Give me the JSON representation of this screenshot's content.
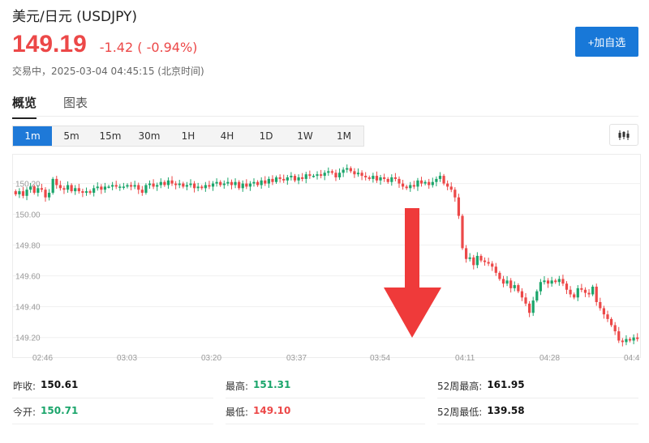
{
  "header": {
    "title": "美元/日元 (USDJPY)",
    "price": "149.19",
    "change": "-1.42 ( -0.94%)",
    "status": "交易中，2025-03-04 04:45:15 (北京时间)",
    "add_button": "+加自选"
  },
  "tabs": [
    {
      "label": "概览",
      "active": true
    },
    {
      "label": "图表",
      "active": false
    }
  ],
  "periods": [
    {
      "label": "1m",
      "active": true
    },
    {
      "label": "5m"
    },
    {
      "label": "15m"
    },
    {
      "label": "30m"
    },
    {
      "label": "1H"
    },
    {
      "label": "4H"
    },
    {
      "label": "1D"
    },
    {
      "label": "1W"
    },
    {
      "label": "1M"
    }
  ],
  "colors": {
    "up": "#1ba56b",
    "down": "#ec4848",
    "accent": "#1878d8",
    "arrow": "#ef3a3a"
  },
  "chart_data": {
    "type": "candlestick",
    "interval": "1m",
    "y_ticks": [
      "150.20",
      "150.00",
      "149.80",
      "149.60",
      "149.40",
      "149.20"
    ],
    "ylim": [
      149.13,
      150.34
    ],
    "x_ticks": [
      "02:46",
      "03:03",
      "03:20",
      "03:37",
      "03:54",
      "04:11",
      "04:28",
      "04:4"
    ],
    "grid": true,
    "annotation": "large red downward arrow near 03:54–04:00",
    "close_series": [
      150.13,
      150.15,
      150.12,
      150.16,
      150.18,
      150.14,
      150.17,
      150.16,
      150.11,
      150.14,
      150.23,
      150.19,
      150.17,
      150.16,
      150.19,
      150.15,
      150.17,
      150.15,
      150.14,
      150.15,
      150.14,
      150.17,
      150.18,
      150.16,
      150.18,
      150.18,
      150.19,
      150.18,
      150.18,
      150.18,
      150.19,
      150.18,
      150.19,
      150.16,
      150.14,
      150.19,
      150.2,
      150.18,
      150.19,
      150.21,
      150.19,
      150.22,
      150.2,
      150.19,
      150.2,
      150.18,
      150.19,
      150.2,
      150.17,
      150.18,
      150.17,
      150.19,
      150.18,
      150.2,
      150.21,
      150.19,
      150.2,
      150.21,
      150.19,
      150.21,
      150.17,
      150.2,
      150.18,
      150.2,
      150.21,
      150.19,
      150.22,
      150.2,
      150.23,
      150.21,
      150.24,
      150.23,
      150.22,
      150.24,
      150.25,
      150.22,
      150.24,
      150.23,
      150.26,
      150.25,
      150.25,
      150.26,
      150.25,
      150.27,
      150.28,
      150.27,
      150.24,
      150.27,
      150.29,
      150.3,
      150.28,
      150.26,
      150.27,
      150.25,
      150.24,
      150.23,
      150.25,
      150.22,
      150.24,
      150.23,
      150.21,
      150.24,
      150.23,
      150.2,
      150.18,
      150.17,
      150.19,
      150.18,
      150.22,
      150.2,
      150.21,
      150.19,
      150.21,
      150.23,
      150.25,
      150.2,
      150.18,
      150.16,
      150.11,
      149.99,
      149.78,
      149.71,
      149.72,
      149.67,
      149.73,
      149.7,
      149.69,
      149.68,
      149.66,
      149.62,
      149.58,
      149.55,
      149.57,
      149.52,
      149.54,
      149.5,
      149.46,
      149.42,
      149.36,
      149.44,
      149.5,
      149.56,
      149.57,
      149.55,
      149.57,
      149.56,
      149.58,
      149.55,
      149.51,
      149.48,
      149.46,
      149.52,
      149.51,
      149.49,
      149.48,
      149.53,
      149.43,
      149.39,
      149.35,
      149.32,
      149.28,
      149.24,
      149.18,
      149.17,
      149.19,
      149.18,
      149.2,
      149.19
    ]
  },
  "stats": [
    {
      "label": "昨收:",
      "value": "150.61",
      "color": "dark"
    },
    {
      "label": "最高:",
      "value": "151.31",
      "color": "green"
    },
    {
      "label": "52周最高:",
      "value": "161.95",
      "color": "dark"
    },
    {
      "label": "今开:",
      "value": "150.71",
      "color": "green"
    },
    {
      "label": "最低:",
      "value": "149.10",
      "color": "red"
    },
    {
      "label": "52周最低:",
      "value": "139.58",
      "color": "dark"
    }
  ]
}
